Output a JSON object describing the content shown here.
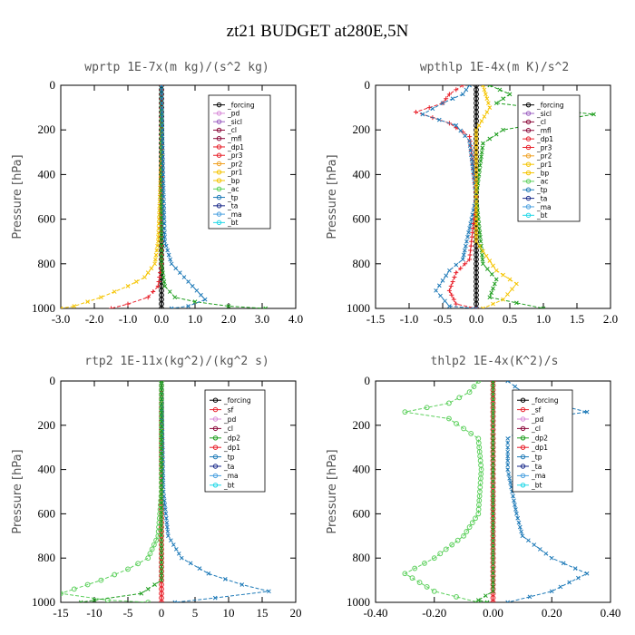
{
  "figure": {
    "title": "zt21  BUDGET at280E,5N"
  },
  "chart_data": [
    {
      "type": "line",
      "title": "wprtp   1E-7x(m kg)/(s^2 kg)",
      "xlabel": "",
      "ylabel": "Pressure [hPa]",
      "xlim": [
        -3.0,
        4.0
      ],
      "ylim": [
        1000,
        0
      ],
      "xticks": [
        "-3.0",
        "-2.0",
        "-1.0",
        "0.0",
        "1.0",
        "2.0",
        "3.0",
        "4.0"
      ],
      "yticks": [
        "0",
        "200",
        "400",
        "600",
        "800",
        "1000"
      ],
      "x_tick_values": [
        -3,
        -2,
        -1,
        0,
        1,
        2,
        3,
        4
      ],
      "y_tick_values": [
        0,
        200,
        400,
        600,
        800,
        1000
      ],
      "legend_position": "top-right",
      "legend": [
        "_forcing",
        "_pd",
        "_sicl",
        "_cl",
        "_mfl",
        "_dp1",
        "_pr3",
        "_pr2",
        "_pr1",
        "_bp",
        "_ac",
        "_tp",
        "_ta",
        "_ma",
        "_bt"
      ],
      "series": [
        {
          "name": "_forcing",
          "color": "#000000",
          "marker": "o",
          "values": [
            [
              0,
              0
            ],
            [
              0,
              100
            ],
            [
              0,
              200
            ],
            [
              0,
              300
            ],
            [
              0,
              400
            ],
            [
              0,
              500
            ],
            [
              0,
              600
            ],
            [
              0,
              700
            ],
            [
              0,
              800
            ],
            [
              0,
              900
            ],
            [
              0,
              1000
            ]
          ]
        },
        {
          "name": "_pr1",
          "color": "#f5c400",
          "marker": "x",
          "values": [
            [
              0,
              0
            ],
            [
              0,
              300
            ],
            [
              -0.05,
              500
            ],
            [
              -0.1,
              700
            ],
            [
              -0.2,
              800
            ],
            [
              -0.5,
              860
            ],
            [
              -1.0,
              900
            ],
            [
              -1.8,
              950
            ],
            [
              -2.6,
              990
            ],
            [
              -3.0,
              1000
            ]
          ]
        },
        {
          "name": "_dp1",
          "color": "#e8202a",
          "marker": "+",
          "values": [
            [
              0,
              0
            ],
            [
              0,
              800
            ],
            [
              -0.1,
              900
            ],
            [
              -0.4,
              950
            ],
            [
              -1.0,
              980
            ],
            [
              -1.5,
              1000
            ]
          ]
        },
        {
          "name": "_ac",
          "color": "#1e9e1e",
          "marker": "x",
          "values": [
            [
              0,
              0
            ],
            [
              0,
              800
            ],
            [
              0.1,
              900
            ],
            [
              0.4,
              950
            ],
            [
              1.0,
              970
            ],
            [
              2.0,
              990
            ],
            [
              3.1,
              1000
            ]
          ]
        },
        {
          "name": "_tp",
          "color": "#1e7ab8",
          "marker": "x",
          "values": [
            [
              0,
              0
            ],
            [
              0.05,
              400
            ],
            [
              0.1,
              700
            ],
            [
              0.3,
              800
            ],
            [
              0.8,
              880
            ],
            [
              1.3,
              960
            ],
            [
              0.8,
              990
            ],
            [
              0.3,
              1000
            ]
          ]
        }
      ]
    },
    {
      "type": "line",
      "title": "wpthlp   1E-4x(m K)/s^2",
      "xlabel": "",
      "ylabel": "Pressure [hPa]",
      "xlim": [
        -1.5,
        2.0
      ],
      "ylim": [
        1000,
        0
      ],
      "xticks": [
        "-1.5",
        "-1.0",
        "-0.5",
        "0.0",
        "0.5",
        "1.0",
        "1.5",
        "2.0"
      ],
      "yticks": [
        "0",
        "200",
        "400",
        "600",
        "800",
        "1000"
      ],
      "x_tick_values": [
        -1.5,
        -1,
        -0.5,
        0,
        0.5,
        1,
        1.5,
        2
      ],
      "y_tick_values": [
        0,
        200,
        400,
        600,
        800,
        1000
      ],
      "legend_position": "top-right",
      "legend": [
        "_forcing",
        "_sicl",
        "_cl",
        "_mfl",
        "_dp1",
        "_pr3",
        "_pr2",
        "_pr1",
        "_bp",
        "_ac",
        "_tp",
        "_ta",
        "_ma",
        "_bt"
      ],
      "series": [
        {
          "name": "_forcing",
          "color": "#000000",
          "marker": "o",
          "values": [
            [
              0,
              0
            ],
            [
              0,
              200
            ],
            [
              0,
              400
            ],
            [
              0,
              600
            ],
            [
              0,
              800
            ],
            [
              0,
              1000
            ]
          ]
        },
        {
          "name": "_dp1",
          "color": "#e8202a",
          "marker": "+",
          "values": [
            [
              -0.2,
              0
            ],
            [
              -0.4,
              40
            ],
            [
              -0.5,
              80
            ],
            [
              -0.9,
              120
            ],
            [
              -0.4,
              170
            ],
            [
              -0.1,
              230
            ],
            [
              0,
              500
            ],
            [
              -0.1,
              780
            ],
            [
              -0.3,
              840
            ],
            [
              -0.4,
              920
            ],
            [
              -0.3,
              980
            ],
            [
              0,
              1000
            ]
          ]
        },
        {
          "name": "_tp",
          "color": "#1e7ab8",
          "marker": "x",
          "values": [
            [
              -0.1,
              0
            ],
            [
              -0.2,
              40
            ],
            [
              -0.5,
              80
            ],
            [
              -0.8,
              130
            ],
            [
              -0.3,
              180
            ],
            [
              -0.1,
              250
            ],
            [
              0,
              500
            ],
            [
              -0.2,
              780
            ],
            [
              -0.4,
              830
            ],
            [
              -0.6,
              920
            ],
            [
              -0.4,
              990
            ],
            [
              0,
              1000
            ]
          ]
        },
        {
          "name": "_ac",
          "color": "#1e9e1e",
          "marker": "x",
          "values": [
            [
              0.2,
              0
            ],
            [
              0.5,
              40
            ],
            [
              0.3,
              80
            ],
            [
              1.75,
              130
            ],
            [
              0.4,
              200
            ],
            [
              0.1,
              260
            ],
            [
              0,
              500
            ],
            [
              0.1,
              800
            ],
            [
              0.3,
              870
            ],
            [
              0.2,
              950
            ],
            [
              1.0,
              1000
            ]
          ]
        },
        {
          "name": "_pr1",
          "color": "#f5c400",
          "marker": "x",
          "values": [
            [
              0.1,
              0
            ],
            [
              0.2,
              100
            ],
            [
              0,
              200
            ],
            [
              0,
              700
            ],
            [
              0.3,
              830
            ],
            [
              0.6,
              890
            ],
            [
              0.4,
              960
            ],
            [
              0.1,
              1000
            ]
          ]
        }
      ]
    },
    {
      "type": "line",
      "title": "rtp2   1E-11x(kg^2)/(kg^2 s)",
      "xlabel": "",
      "ylabel": "Pressure [hPa]",
      "xlim": [
        -15,
        20
      ],
      "ylim": [
        1000,
        0
      ],
      "xticks": [
        "-15",
        "-10",
        "-5",
        "0",
        "5",
        "10",
        "15",
        "20"
      ],
      "yticks": [
        "0",
        "200",
        "400",
        "600",
        "800",
        "1000"
      ],
      "x_tick_values": [
        -15,
        -10,
        -5,
        0,
        5,
        10,
        15,
        20
      ],
      "y_tick_values": [
        0,
        200,
        400,
        600,
        800,
        1000
      ],
      "legend_position": "top-right",
      "legend": [
        "_forcing",
        "_sf",
        "_pd",
        "_cl",
        "_dp2",
        "_dp1",
        "_tp",
        "_ta",
        "_ma",
        "_bt"
      ],
      "series": [
        {
          "name": "_forcing",
          "color": "#e8202a",
          "marker": "o",
          "values": [
            [
              0,
              0
            ],
            [
              0,
              200
            ],
            [
              0,
              400
            ],
            [
              0,
              600
            ],
            [
              0,
              800
            ],
            [
              0,
              1000
            ]
          ]
        },
        {
          "name": "_dp1",
          "color": "#5cd05c",
          "marker": "o",
          "values": [
            [
              0,
              0
            ],
            [
              0,
              500
            ],
            [
              -0.5,
              700
            ],
            [
              -2,
              800
            ],
            [
              -5,
              850
            ],
            [
              -9,
              900
            ],
            [
              -13,
              940
            ],
            [
              -15,
              960
            ],
            [
              -8,
              990
            ],
            [
              -2,
              1000
            ]
          ]
        },
        {
          "name": "_tp",
          "color": "#1e7ab8",
          "marker": "x",
          "values": [
            [
              0,
              0
            ],
            [
              0.3,
              500
            ],
            [
              1,
              700
            ],
            [
              3,
              800
            ],
            [
              7,
              870
            ],
            [
              12,
              920
            ],
            [
              16,
              950
            ],
            [
              8,
              980
            ],
            [
              2,
              1000
            ]
          ]
        },
        {
          "name": "_dp2",
          "color": "#1e9e1e",
          "marker": "x",
          "values": [
            [
              0,
              0
            ],
            [
              0,
              900
            ],
            [
              -3,
              960
            ],
            [
              -10,
              990
            ],
            [
              -12,
              1000
            ]
          ]
        }
      ]
    },
    {
      "type": "line",
      "title": "thlp2   1E-4x(K^2)/s",
      "xlabel": "",
      "ylabel": "Pressure [hPa]",
      "xlim": [
        -0.4,
        0.4
      ],
      "ylim": [
        1000,
        0
      ],
      "xticks": [
        "-0.40",
        "-0.20",
        "0.00",
        "0.20",
        "0.40"
      ],
      "yticks": [
        "0",
        "200",
        "400",
        "600",
        "800",
        "1000"
      ],
      "x_tick_values": [
        -0.4,
        -0.2,
        0,
        0.2,
        0.4
      ],
      "y_tick_values": [
        0,
        200,
        400,
        600,
        800,
        1000
      ],
      "legend_position": "top-right",
      "legend": [
        "_forcing",
        "_sf",
        "_pd",
        "_cl",
        "_dp2",
        "_dp1",
        "_tp",
        "_ta",
        "_ma",
        "_bt"
      ],
      "series": [
        {
          "name": "_forcing",
          "color": "#e8202a",
          "marker": "o",
          "values": [
            [
              0,
              0
            ],
            [
              0,
              200
            ],
            [
              0,
              400
            ],
            [
              0,
              600
            ],
            [
              0,
              800
            ],
            [
              0,
              1000
            ]
          ]
        },
        {
          "name": "_dp1",
          "color": "#5cd05c",
          "marker": "o",
          "values": [
            [
              -0.05,
              0
            ],
            [
              -0.08,
              50
            ],
            [
              -0.15,
              100
            ],
            [
              -0.3,
              140
            ],
            [
              -0.15,
              170
            ],
            [
              -0.05,
              260
            ],
            [
              -0.04,
              400
            ],
            [
              -0.05,
              600
            ],
            [
              -0.1,
              700
            ],
            [
              -0.2,
              800
            ],
            [
              -0.3,
              870
            ],
            [
              -0.2,
              950
            ],
            [
              -0.05,
              1000
            ]
          ]
        },
        {
          "name": "_tp",
          "color": "#1e7ab8",
          "marker": "x",
          "values": [
            [
              0.05,
              0
            ],
            [
              0.1,
              50
            ],
            [
              0.2,
              100
            ],
            [
              0.32,
              140
            ],
            [
              0.15,
              170
            ],
            [
              0.05,
              260
            ],
            [
              0.05,
              400
            ],
            [
              0.08,
              600
            ],
            [
              0.1,
              700
            ],
            [
              0.2,
              800
            ],
            [
              0.32,
              870
            ],
            [
              0.2,
              950
            ],
            [
              0.05,
              1000
            ]
          ]
        },
        {
          "name": "_dp2",
          "color": "#1e9e1e",
          "marker": "x",
          "values": [
            [
              0,
              0
            ],
            [
              0,
              950
            ],
            [
              -0.05,
              990
            ],
            [
              -0.02,
              1000
            ]
          ]
        }
      ]
    }
  ]
}
